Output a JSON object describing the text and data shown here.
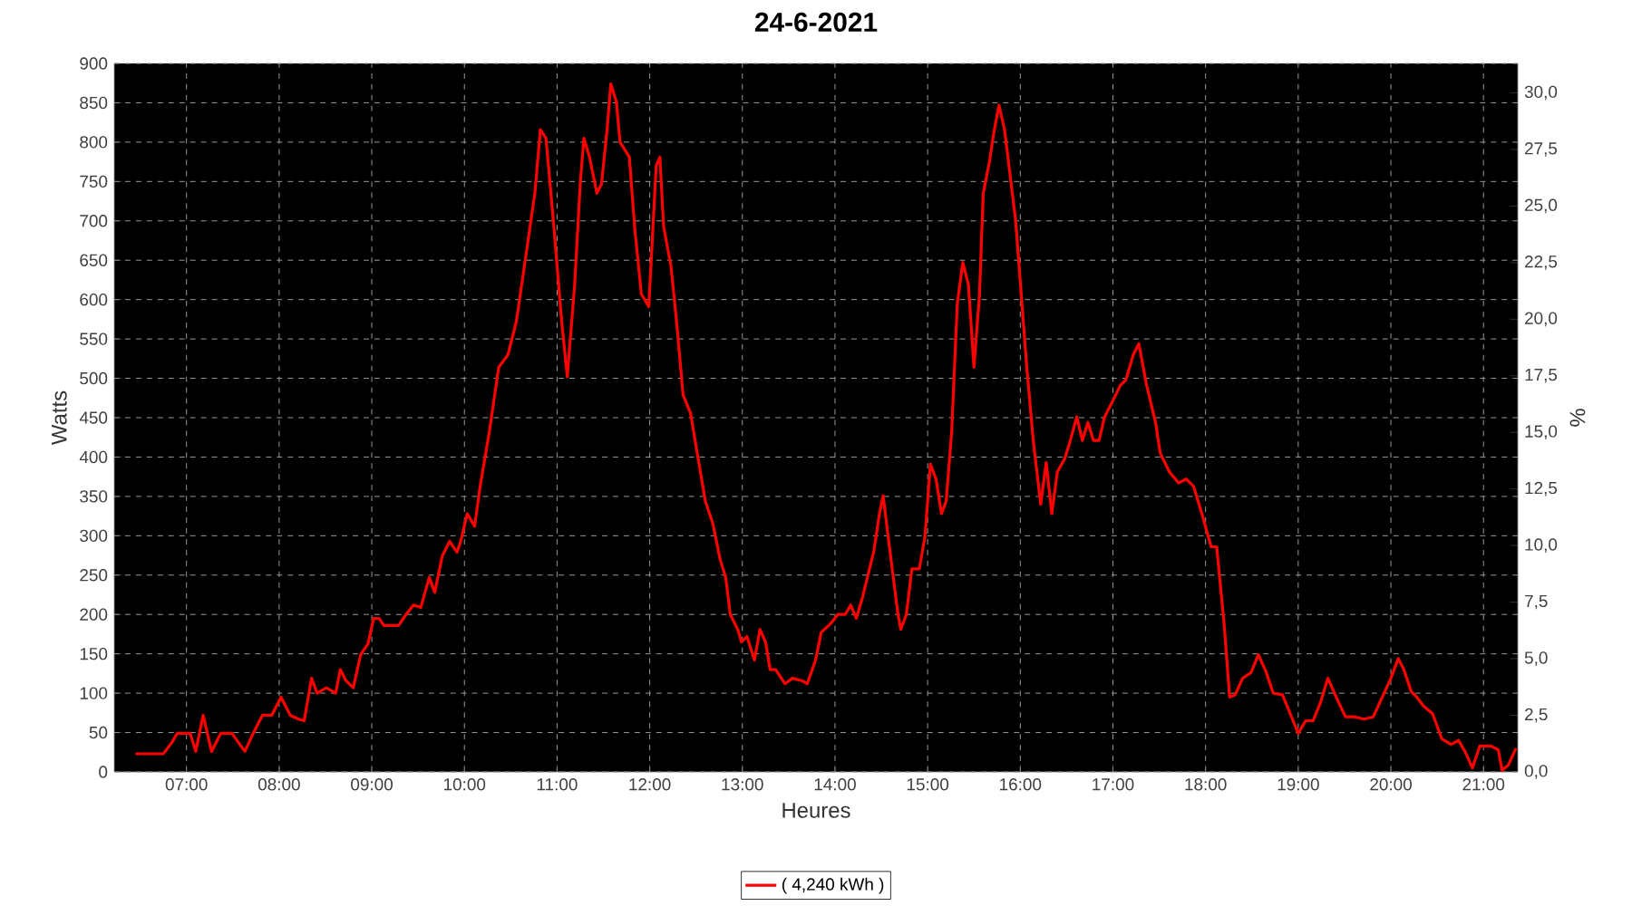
{
  "chart_data": {
    "type": "line",
    "title": "24-6-2021",
    "xlabel": "Heures",
    "ylabel": "Watts",
    "y2label": "%",
    "x": [
      6.45,
      6.75,
      6.84,
      6.9,
      7.04,
      7.1,
      7.18,
      7.27,
      7.37,
      7.49,
      7.63,
      7.72,
      7.82,
      7.92,
      8.02,
      8.12,
      8.21,
      8.27,
      8.35,
      8.41,
      8.51,
      8.61,
      8.66,
      8.72,
      8.8,
      8.88,
      8.96,
      9.02,
      9.08,
      9.13,
      9.29,
      9.37,
      9.45,
      9.53,
      9.62,
      9.68,
      9.76,
      9.84,
      9.92,
      9.96,
      10.03,
      10.11,
      10.17,
      10.27,
      10.37,
      10.47,
      10.56,
      10.66,
      10.76,
      10.82,
      10.88,
      10.96,
      11.05,
      11.11,
      11.19,
      11.25,
      11.29,
      11.35,
      11.43,
      11.48,
      11.54,
      11.58,
      11.64,
      11.68,
      11.78,
      11.84,
      11.91,
      11.99,
      12.07,
      12.11,
      12.15,
      12.23,
      12.29,
      12.36,
      12.44,
      12.54,
      12.6,
      12.68,
      12.76,
      12.82,
      12.87,
      12.95,
      12.99,
      13.05,
      13.13,
      13.19,
      13.25,
      13.3,
      13.36,
      13.46,
      13.54,
      13.64,
      13.7,
      13.79,
      13.85,
      13.95,
      14.03,
      14.11,
      14.17,
      14.23,
      14.3,
      14.42,
      14.48,
      14.52,
      14.58,
      14.68,
      14.71,
      14.77,
      14.83,
      14.91,
      14.97,
      15.03,
      15.09,
      15.15,
      15.2,
      15.26,
      15.32,
      15.38,
      15.44,
      15.5,
      15.56,
      15.6,
      15.67,
      15.71,
      15.77,
      15.83,
      15.89,
      15.95,
      16.01,
      16.07,
      16.14,
      16.22,
      16.28,
      16.34,
      16.4,
      16.48,
      16.54,
      16.61,
      16.67,
      16.73,
      16.79,
      16.85,
      16.91,
      17.01,
      17.08,
      17.14,
      17.22,
      17.28,
      17.36,
      17.46,
      17.51,
      17.61,
      17.71,
      17.79,
      17.87,
      17.96,
      18.06,
      18.12,
      18.2,
      18.26,
      18.32,
      18.4,
      18.49,
      18.57,
      18.65,
      18.73,
      18.83,
      18.92,
      19.0,
      19.08,
      19.16,
      19.24,
      19.32,
      19.41,
      19.51,
      19.61,
      19.71,
      19.81,
      19.9,
      20.0,
      20.08,
      20.14,
      20.22,
      20.28,
      20.35,
      20.45,
      20.55,
      20.65,
      20.73,
      20.8,
      20.88,
      20.96,
      21.08,
      21.16,
      21.2,
      21.27,
      21.35
    ],
    "series": [
      {
        "name": "( 4,240 kWh )",
        "color": "#ff0000",
        "values": [
          23,
          23,
          37,
          49,
          49,
          26,
          72,
          26,
          49,
          49,
          26,
          49,
          72,
          72,
          95,
          72,
          67,
          65,
          119,
          100,
          107,
          100,
          130,
          116,
          107,
          149,
          163,
          195,
          195,
          186,
          186,
          200,
          212,
          209,
          247,
          228,
          274,
          293,
          279,
          293,
          328,
          312,
          363,
          433,
          514,
          530,
          572,
          653,
          735,
          816,
          805,
          700,
          572,
          502,
          619,
          747,
          805,
          781,
          735,
          747,
          816,
          874,
          851,
          800,
          781,
          688,
          607,
          591,
          770,
          781,
          693,
          642,
          572,
          479,
          456,
          386,
          344,
          316,
          270,
          247,
          200,
          181,
          165,
          172,
          142,
          181,
          165,
          130,
          130,
          112,
          119,
          116,
          112,
          142,
          177,
          188,
          200,
          200,
          212,
          195,
          223,
          281,
          328,
          351,
          293,
          200,
          181,
          200,
          258,
          258,
          298,
          391,
          372,
          328,
          344,
          433,
          595,
          647,
          619,
          514,
          607,
          735,
          777,
          809,
          847,
          816,
          758,
          700,
          607,
          514,
          421,
          340,
          393,
          328,
          381,
          398,
          421,
          451,
          421,
          444,
          421,
          421,
          451,
          474,
          491,
          498,
          530,
          544,
          493,
          444,
          405,
          381,
          367,
          372,
          363,
          328,
          286,
          286,
          188,
          95,
          98,
          119,
          126,
          149,
          128,
          100,
          98,
          72,
          49,
          65,
          65,
          88,
          119,
          95,
          70,
          70,
          67,
          70,
          93,
          119,
          144,
          130,
          102,
          95,
          84,
          74,
          42,
          35,
          40,
          26,
          5,
          33,
          33,
          28,
          2,
          9,
          30
        ]
      }
    ],
    "xlim": [
      6.22,
      21.37
    ],
    "ylim": [
      0,
      900
    ],
    "xticks": [
      {
        "value": 7,
        "label": "07:00"
      },
      {
        "value": 8,
        "label": "08:00"
      },
      {
        "value": 9,
        "label": "09:00"
      },
      {
        "value": 10,
        "label": "10:00"
      },
      {
        "value": 11,
        "label": "11:00"
      },
      {
        "value": 12,
        "label": "12:00"
      },
      {
        "value": 13,
        "label": "13:00"
      },
      {
        "value": 14,
        "label": "14:00"
      },
      {
        "value": 15,
        "label": "15:00"
      },
      {
        "value": 16,
        "label": "16:00"
      },
      {
        "value": 17,
        "label": "17:00"
      },
      {
        "value": 18,
        "label": "18:00"
      },
      {
        "value": 19,
        "label": "19:00"
      },
      {
        "value": 20,
        "label": "20:00"
      },
      {
        "value": 21,
        "label": "21:00"
      }
    ],
    "yticks": [
      0,
      50,
      100,
      150,
      200,
      250,
      300,
      350,
      400,
      450,
      500,
      550,
      600,
      650,
      700,
      750,
      800,
      850,
      900
    ],
    "y2lim": [
      0,
      31.3
    ],
    "y2ticks": [
      {
        "value": 0,
        "label": "0,0"
      },
      {
        "value": 2.5,
        "label": "2,5"
      },
      {
        "value": 5,
        "label": "5,0"
      },
      {
        "value": 7.5,
        "label": "7,5"
      },
      {
        "value": 10,
        "label": "10,0"
      },
      {
        "value": 12.5,
        "label": "12,5"
      },
      {
        "value": 15,
        "label": "15,0"
      },
      {
        "value": 17.5,
        "label": "17,5"
      },
      {
        "value": 20,
        "label": "20,0"
      },
      {
        "value": 22.5,
        "label": "22,5"
      },
      {
        "value": 25,
        "label": "25,0"
      },
      {
        "value": 27.5,
        "label": "27,5"
      },
      {
        "value": 30,
        "label": "30,0"
      }
    ],
    "grid": true,
    "legend": "bottom"
  }
}
